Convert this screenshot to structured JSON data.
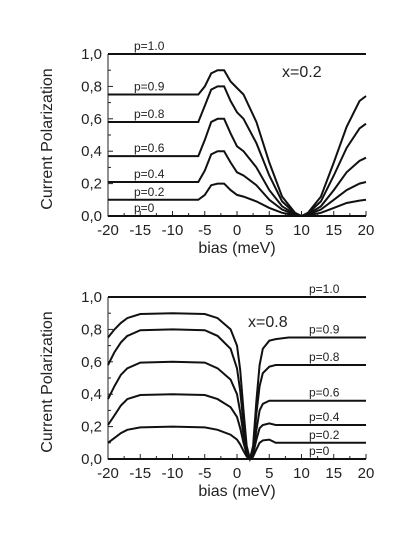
{
  "chart_data": [
    {
      "type": "line",
      "annotation": "x=0.2",
      "xlabel": "bias (meV)",
      "ylabel": "Current Polarization",
      "xlim": [
        -20,
        20
      ],
      "ylim": [
        0.0,
        1.0
      ],
      "xticks": [
        -20,
        -15,
        -10,
        -5,
        0,
        5,
        10,
        15,
        20
      ],
      "yticks": [
        0.0,
        0.2,
        0.4,
        0.6,
        0.8,
        1.0
      ],
      "ytick_labels": [
        "0,0",
        "0,2",
        "0,4",
        "0,6",
        "0,8",
        "1,0"
      ],
      "series": [
        {
          "name": "p=0",
          "x": [
            -20,
            20
          ],
          "y": [
            0.0,
            0.0
          ]
        },
        {
          "name": "p=0.2",
          "x": [
            -20,
            -6,
            -5,
            -4,
            -3,
            -2,
            -1,
            0,
            1,
            3,
            5,
            7,
            9,
            10,
            11,
            13,
            15,
            17,
            19,
            20
          ],
          "y": [
            0.1,
            0.1,
            0.13,
            0.19,
            0.2,
            0.2,
            0.16,
            0.13,
            0.12,
            0.09,
            0.05,
            0.02,
            0.004,
            0.0,
            0.004,
            0.02,
            0.05,
            0.08,
            0.095,
            0.1
          ]
        },
        {
          "name": "p=0.4",
          "x": [
            -20,
            -6,
            -5,
            -4,
            -3,
            -2,
            -1,
            0,
            1,
            3,
            5,
            7,
            9,
            10,
            11,
            13,
            15,
            17,
            19,
            20
          ],
          "y": [
            0.21,
            0.21,
            0.28,
            0.38,
            0.4,
            0.4,
            0.33,
            0.27,
            0.25,
            0.19,
            0.1,
            0.04,
            0.008,
            0.0,
            0.008,
            0.04,
            0.1,
            0.16,
            0.2,
            0.21
          ]
        },
        {
          "name": "p=0.6",
          "x": [
            -20,
            -6,
            -5,
            -4,
            -3,
            -2,
            -1,
            0,
            1,
            3,
            5,
            7,
            9,
            10,
            11,
            13,
            15,
            17,
            19,
            20
          ],
          "y": [
            0.37,
            0.37,
            0.47,
            0.58,
            0.6,
            0.6,
            0.51,
            0.43,
            0.4,
            0.3,
            0.16,
            0.06,
            0.012,
            0.0,
            0.012,
            0.06,
            0.16,
            0.27,
            0.34,
            0.36
          ]
        },
        {
          "name": "p=0.8",
          "x": [
            -20,
            -6,
            -5,
            -4,
            -3,
            -2,
            -1,
            0,
            1,
            3,
            5,
            7,
            9,
            10,
            11,
            13,
            15,
            17,
            19,
            20
          ],
          "y": [
            0.58,
            0.58,
            0.68,
            0.78,
            0.8,
            0.8,
            0.71,
            0.64,
            0.6,
            0.45,
            0.25,
            0.09,
            0.016,
            0.0,
            0.016,
            0.09,
            0.25,
            0.42,
            0.54,
            0.57
          ]
        },
        {
          "name": "p=0.9",
          "x": [
            -20,
            -6,
            -5,
            -4,
            -3,
            -2,
            -1,
            0,
            1,
            3,
            5,
            7,
            9,
            10,
            11,
            13,
            15,
            17,
            19,
            20
          ],
          "y": [
            0.75,
            0.75,
            0.8,
            0.88,
            0.9,
            0.9,
            0.83,
            0.79,
            0.75,
            0.58,
            0.33,
            0.12,
            0.02,
            0.0,
            0.02,
            0.12,
            0.33,
            0.55,
            0.71,
            0.74
          ]
        },
        {
          "name": "p=1.0",
          "x": [
            -20,
            20
          ],
          "y": [
            1.0,
            1.0
          ]
        }
      ]
    },
    {
      "type": "line",
      "annotation": "x=0.8",
      "xlabel": "bias (meV)",
      "ylabel": "Current Polarization",
      "xlim": [
        -20,
        20
      ],
      "ylim": [
        0.0,
        1.0
      ],
      "xticks": [
        -20,
        -15,
        -10,
        -5,
        0,
        5,
        10,
        15,
        20
      ],
      "yticks": [
        0.0,
        0.2,
        0.4,
        0.6,
        0.8,
        1.0
      ],
      "ytick_labels": [
        "0,0",
        "0,2",
        "0,4",
        "0,6",
        "0,8",
        "1,0"
      ],
      "series": [
        {
          "name": "p=0",
          "x": [
            -20,
            20
          ],
          "y": [
            0.0,
            0.0
          ]
        },
        {
          "name": "p=0.2",
          "x": [
            -20,
            -19,
            -18,
            -17,
            -15,
            -10,
            -5,
            -3,
            -1,
            0,
            0.5,
            1,
            1.5,
            2,
            2.5,
            3,
            3.5,
            4,
            5,
            6,
            8,
            10,
            20
          ],
          "y": [
            0.1,
            0.13,
            0.16,
            0.18,
            0.195,
            0.2,
            0.195,
            0.18,
            0.15,
            0.12,
            0.09,
            0.05,
            0.015,
            0.0,
            0.015,
            0.06,
            0.1,
            0.115,
            0.12,
            0.1,
            0.1,
            0.1,
            0.1
          ]
        },
        {
          "name": "p=0.4",
          "x": [
            -20,
            -19,
            -18,
            -17,
            -15,
            -10,
            -5,
            -3,
            -1,
            0,
            0.5,
            1,
            1.5,
            2,
            2.5,
            3,
            3.5,
            4,
            5,
            6,
            8,
            10,
            20
          ],
          "y": [
            0.21,
            0.27,
            0.33,
            0.37,
            0.395,
            0.4,
            0.395,
            0.37,
            0.32,
            0.26,
            0.19,
            0.1,
            0.03,
            0.0,
            0.03,
            0.12,
            0.19,
            0.21,
            0.22,
            0.21,
            0.21,
            0.21,
            0.21
          ]
        },
        {
          "name": "p=0.6",
          "x": [
            -20,
            -19,
            -18,
            -17,
            -15,
            -10,
            -5,
            -3,
            -1,
            0,
            0.5,
            1,
            1.5,
            2,
            2.5,
            3,
            3.5,
            4,
            5,
            6,
            8,
            10,
            20
          ],
          "y": [
            0.37,
            0.45,
            0.52,
            0.56,
            0.595,
            0.6,
            0.595,
            0.56,
            0.49,
            0.4,
            0.29,
            0.15,
            0.04,
            0.0,
            0.04,
            0.18,
            0.3,
            0.34,
            0.36,
            0.36,
            0.36,
            0.36,
            0.36
          ]
        },
        {
          "name": "p=0.8",
          "x": [
            -20,
            -19,
            -18,
            -17,
            -15,
            -10,
            -5,
            -3,
            -1,
            0,
            0.5,
            1,
            1.5,
            2,
            2.5,
            3,
            3.5,
            4,
            5,
            6,
            8,
            10,
            20
          ],
          "y": [
            0.58,
            0.66,
            0.72,
            0.76,
            0.795,
            0.8,
            0.795,
            0.76,
            0.68,
            0.56,
            0.42,
            0.22,
            0.06,
            0.0,
            0.06,
            0.28,
            0.45,
            0.53,
            0.57,
            0.58,
            0.58,
            0.58,
            0.58
          ]
        },
        {
          "name": "p=0.9",
          "x": [
            -20,
            -19,
            -18,
            -17,
            -15,
            -10,
            -5,
            -3,
            -1,
            0,
            0.5,
            1,
            1.5,
            2,
            2.5,
            3,
            3.5,
            4,
            5,
            6,
            8,
            10,
            20
          ],
          "y": [
            0.75,
            0.8,
            0.84,
            0.87,
            0.895,
            0.9,
            0.895,
            0.87,
            0.8,
            0.7,
            0.55,
            0.3,
            0.08,
            0.0,
            0.08,
            0.36,
            0.58,
            0.68,
            0.73,
            0.74,
            0.75,
            0.75,
            0.75
          ]
        },
        {
          "name": "p=1.0",
          "x": [
            -20,
            20
          ],
          "y": [
            1.0,
            1.0
          ]
        }
      ]
    }
  ]
}
